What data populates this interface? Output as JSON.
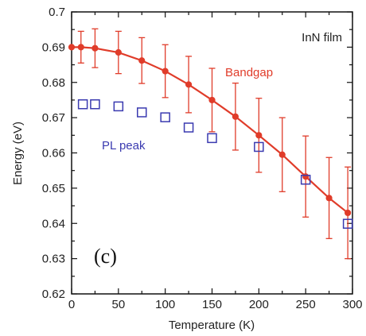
{
  "chart_data": {
    "type": "scatter",
    "title": "",
    "xlabel": "Temperature (K)",
    "ylabel": "Energy (eV)",
    "xlim": [
      0,
      300
    ],
    "ylim": [
      0.62,
      0.7
    ],
    "xticks": [
      0,
      50,
      100,
      150,
      200,
      250,
      300
    ],
    "yticks": [
      0.62,
      0.63,
      0.64,
      0.65,
      0.66,
      0.67,
      0.68,
      0.69,
      0.7
    ],
    "xtick_labels": [
      "0",
      "50",
      "100",
      "150",
      "200",
      "250",
      "300"
    ],
    "ytick_labels": [
      "0.62",
      "0.63",
      "0.64",
      "0.65",
      "0.66",
      "0.67",
      "0.68",
      "0.69",
      "0.7"
    ],
    "grid": false,
    "series": [
      {
        "name": "Bandgap",
        "color": "#e03c2a",
        "marker": "filled-circle",
        "line": true,
        "x": [
          0,
          10,
          25,
          50,
          75,
          100,
          125,
          150,
          175,
          200,
          225,
          250,
          275,
          295
        ],
        "y": [
          0.69,
          0.69,
          0.6897,
          0.6885,
          0.6862,
          0.6832,
          0.6794,
          0.675,
          0.6703,
          0.665,
          0.6595,
          0.6533,
          0.6472,
          0.643
        ],
        "yerr": [
          0,
          0.0045,
          0.0055,
          0.006,
          0.0065,
          0.0075,
          0.008,
          0.009,
          0.0095,
          0.0105,
          0.0105,
          0.0115,
          0.0115,
          0.013
        ]
      },
      {
        "name": "PL peak",
        "color": "#3a3ab0",
        "marker": "open-square",
        "line": false,
        "x": [
          12,
          25,
          50,
          75,
          100,
          125,
          150,
          200,
          250,
          295
        ],
        "y": [
          0.6738,
          0.6738,
          0.6732,
          0.6715,
          0.6701,
          0.6672,
          0.6642,
          0.6617,
          0.6524,
          0.6399
        ]
      }
    ],
    "annotations": {
      "film": "InN film",
      "bandgap": "Bandgap",
      "pl": "PL peak",
      "panel": "(c)"
    }
  }
}
